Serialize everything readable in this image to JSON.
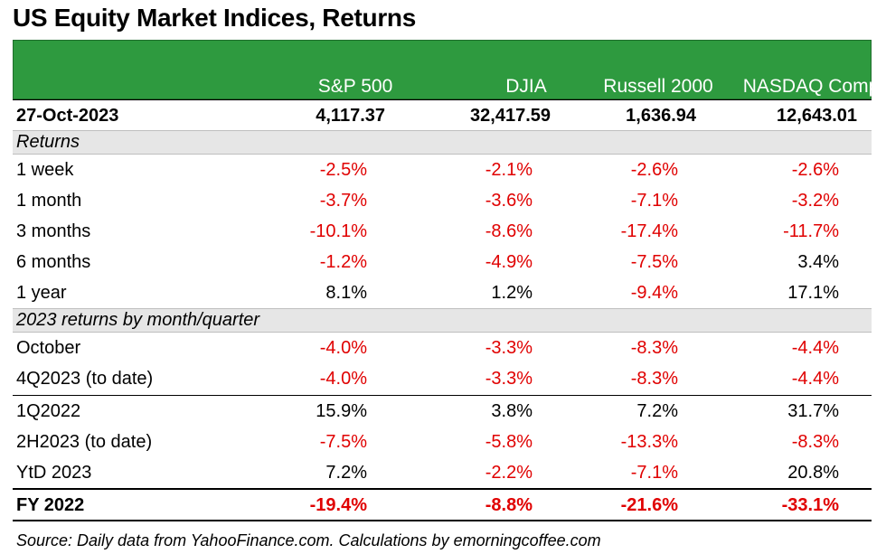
{
  "title": "US Equity Market Indices, Returns",
  "columns": [
    "S&P 500",
    "DJIA",
    "Russell 2000",
    "NASDAQ Comp"
  ],
  "date_row": {
    "label": "27-Oct-2023",
    "values": [
      "4,117.37",
      "32,417.59",
      "1,636.94",
      "12,643.01"
    ]
  },
  "sections": [
    {
      "heading": "Returns",
      "rows": [
        {
          "label": "1 week",
          "values": [
            "-2.5%",
            "-2.1%",
            "-2.6%",
            "-2.6%"
          ]
        },
        {
          "label": "1 month",
          "values": [
            "-3.7%",
            "-3.6%",
            "-7.1%",
            "-3.2%"
          ]
        },
        {
          "label": "3 months",
          "values": [
            "-10.1%",
            "-8.6%",
            "-17.4%",
            "-11.7%"
          ]
        },
        {
          "label": "6 months",
          "values": [
            "-1.2%",
            "-4.9%",
            "-7.5%",
            "3.4%"
          ]
        },
        {
          "label": "1 year",
          "values": [
            "8.1%",
            "1.2%",
            "-9.4%",
            "17.1%"
          ]
        }
      ]
    },
    {
      "heading": "2023 returns by month/quarter",
      "rows": [
        {
          "label": "October",
          "values": [
            "-4.0%",
            "-3.3%",
            "-8.3%",
            "-4.4%"
          ]
        },
        {
          "label": "4Q2023 (to date)",
          "values": [
            "-4.0%",
            "-3.3%",
            "-8.3%",
            "-4.4%"
          ]
        },
        {
          "label": "1Q2022",
          "values": [
            "15.9%",
            "3.8%",
            "7.2%",
            "31.7%"
          ]
        },
        {
          "label": "2H2023 (to date)",
          "values": [
            "-7.5%",
            "-5.8%",
            "-13.3%",
            "-8.3%"
          ]
        },
        {
          "label": "YtD 2023",
          "values": [
            "7.2%",
            "-2.2%",
            "-7.1%",
            "20.8%"
          ]
        }
      ]
    }
  ],
  "fy_row": {
    "label": "FY 2022",
    "values": [
      "-19.4%",
      "-8.8%",
      "-21.6%",
      "-33.1%"
    ]
  },
  "source": "Source: Daily data from YahooFinance.com. Calculations by emorningcoffee.com",
  "colors": {
    "header_green": "#2e9a3f",
    "negative_red": "#e00000",
    "section_gray": "#e6e6e6"
  }
}
